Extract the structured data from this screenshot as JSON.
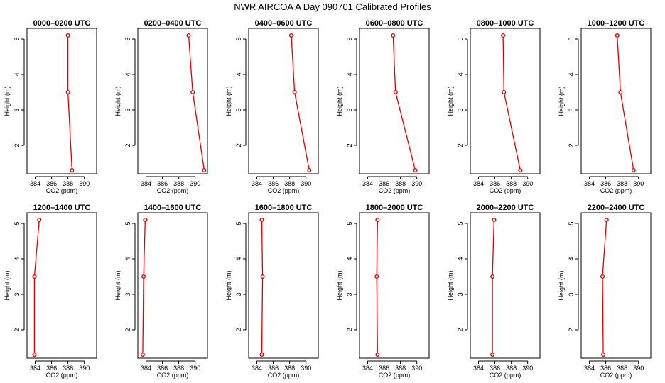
{
  "figure": {
    "title": "NWR AIRCOA A  Day 090701  Calibrated Profiles"
  },
  "chart_data": [
    {
      "type": "line",
      "title": "0000–0200 UTC",
      "xlabel": "CO2 (ppm)",
      "ylabel": "Height (m)",
      "xlim": [
        383,
        391.5
      ],
      "ylim": [
        1.2,
        5.3
      ],
      "x_ticks": [
        384,
        386,
        388,
        390
      ],
      "y_ticks": [
        2,
        3,
        4,
        5
      ],
      "x": [
        388.5,
        388.0,
        388.0
      ],
      "y": [
        1.3,
        3.5,
        5.1
      ]
    },
    {
      "type": "line",
      "title": "0200–0400 UTC",
      "xlabel": "CO2 (ppm)",
      "ylabel": "Height (m)",
      "xlim": [
        383,
        391.5
      ],
      "ylim": [
        1.2,
        5.3
      ],
      "x_ticks": [
        384,
        386,
        388,
        390
      ],
      "y_ticks": [
        2,
        3,
        4,
        5
      ],
      "x": [
        391.1,
        389.7,
        389.2
      ],
      "y": [
        1.3,
        3.5,
        5.1
      ]
    },
    {
      "type": "line",
      "title": "0400–0600 UTC",
      "xlabel": "CO2 (ppm)",
      "ylabel": "Height (m)",
      "xlim": [
        383,
        391.5
      ],
      "ylim": [
        1.2,
        5.3
      ],
      "x_ticks": [
        384,
        386,
        388,
        390
      ],
      "y_ticks": [
        2,
        3,
        4,
        5
      ],
      "x": [
        390.4,
        388.6,
        388.2
      ],
      "y": [
        1.3,
        3.5,
        5.1
      ]
    },
    {
      "type": "line",
      "title": "0600–0800 UTC",
      "xlabel": "CO2 (ppm)",
      "ylabel": "Height (m)",
      "xlim": [
        383,
        391.5
      ],
      "ylim": [
        1.2,
        5.3
      ],
      "x_ticks": [
        384,
        386,
        388,
        390
      ],
      "y_ticks": [
        2,
        3,
        4,
        5
      ],
      "x": [
        389.8,
        387.4,
        387.1
      ],
      "y": [
        1.3,
        3.5,
        5.1
      ]
    },
    {
      "type": "line",
      "title": "0800–1000 UTC",
      "xlabel": "CO2 (ppm)",
      "ylabel": "Height (m)",
      "xlim": [
        383,
        391.5
      ],
      "ylim": [
        1.2,
        5.3
      ],
      "x_ticks": [
        384,
        386,
        388,
        390
      ],
      "y_ticks": [
        2,
        3,
        4,
        5
      ],
      "x": [
        389.1,
        387.1,
        387.0
      ],
      "y": [
        1.3,
        3.5,
        5.1
      ]
    },
    {
      "type": "line",
      "title": "1000–1200 UTC",
      "xlabel": "CO2 (ppm)",
      "ylabel": "Height (m)",
      "xlim": [
        383,
        391.5
      ],
      "ylim": [
        1.2,
        5.3
      ],
      "x_ticks": [
        384,
        386,
        388,
        390
      ],
      "y_ticks": [
        2,
        3,
        4,
        5
      ],
      "x": [
        389.4,
        387.8,
        387.4
      ],
      "y": [
        1.3,
        3.5,
        5.1
      ]
    },
    {
      "type": "line",
      "title": "1200–1400 UTC",
      "xlabel": "CO2 (ppm)",
      "ylabel": "Height (m)",
      "xlim": [
        383,
        391.5
      ],
      "ylim": [
        1.2,
        5.3
      ],
      "x_ticks": [
        384,
        386,
        388,
        390
      ],
      "y_ticks": [
        2,
        3,
        4,
        5
      ],
      "x": [
        383.9,
        383.9,
        384.5
      ],
      "y": [
        1.3,
        3.5,
        5.1
      ]
    },
    {
      "type": "line",
      "title": "1400–1600 UTC",
      "xlabel": "CO2 (ppm)",
      "ylabel": "Height (m)",
      "xlim": [
        383,
        391.5
      ],
      "ylim": [
        1.2,
        5.3
      ],
      "x_ticks": [
        384,
        386,
        388,
        390
      ],
      "y_ticks": [
        2,
        3,
        4,
        5
      ],
      "x": [
        383.6,
        383.7,
        383.9
      ],
      "y": [
        1.3,
        3.5,
        5.1
      ]
    },
    {
      "type": "line",
      "title": "1600–1800 UTC",
      "xlabel": "CO2 (ppm)",
      "ylabel": "Height (m)",
      "xlim": [
        383,
        391.5
      ],
      "ylim": [
        1.2,
        5.3
      ],
      "x_ticks": [
        384,
        386,
        388,
        390
      ],
      "y_ticks": [
        2,
        3,
        4,
        5
      ],
      "x": [
        384.6,
        384.7,
        384.6
      ],
      "y": [
        1.3,
        3.5,
        5.1
      ]
    },
    {
      "type": "line",
      "title": "1800–2000 UTC",
      "xlabel": "CO2 (ppm)",
      "ylabel": "Height (m)",
      "xlim": [
        383,
        391.5
      ],
      "ylim": [
        1.2,
        5.3
      ],
      "x_ticks": [
        384,
        386,
        388,
        390
      ],
      "y_ticks": [
        2,
        3,
        4,
        5
      ],
      "x": [
        385.2,
        385.1,
        385.2
      ],
      "y": [
        1.3,
        3.5,
        5.1
      ]
    },
    {
      "type": "line",
      "title": "2000–2200 UTC",
      "xlabel": "CO2 (ppm)",
      "ylabel": "Height (m)",
      "xlim": [
        383,
        391.5
      ],
      "ylim": [
        1.2,
        5.3
      ],
      "x_ticks": [
        384,
        386,
        388,
        390
      ],
      "y_ticks": [
        2,
        3,
        4,
        5
      ],
      "x": [
        385.7,
        385.7,
        385.9
      ],
      "y": [
        1.3,
        3.5,
        5.1
      ]
    },
    {
      "type": "line",
      "title": "2200–2400 UTC",
      "xlabel": "CO2 (ppm)",
      "ylabel": "Height (m)",
      "xlim": [
        383,
        391.5
      ],
      "ylim": [
        1.2,
        5.3
      ],
      "x_ticks": [
        384,
        386,
        388,
        390
      ],
      "y_ticks": [
        2,
        3,
        4,
        5
      ],
      "x": [
        385.7,
        385.6,
        386.1
      ],
      "y": [
        1.3,
        3.5,
        5.1
      ]
    }
  ]
}
